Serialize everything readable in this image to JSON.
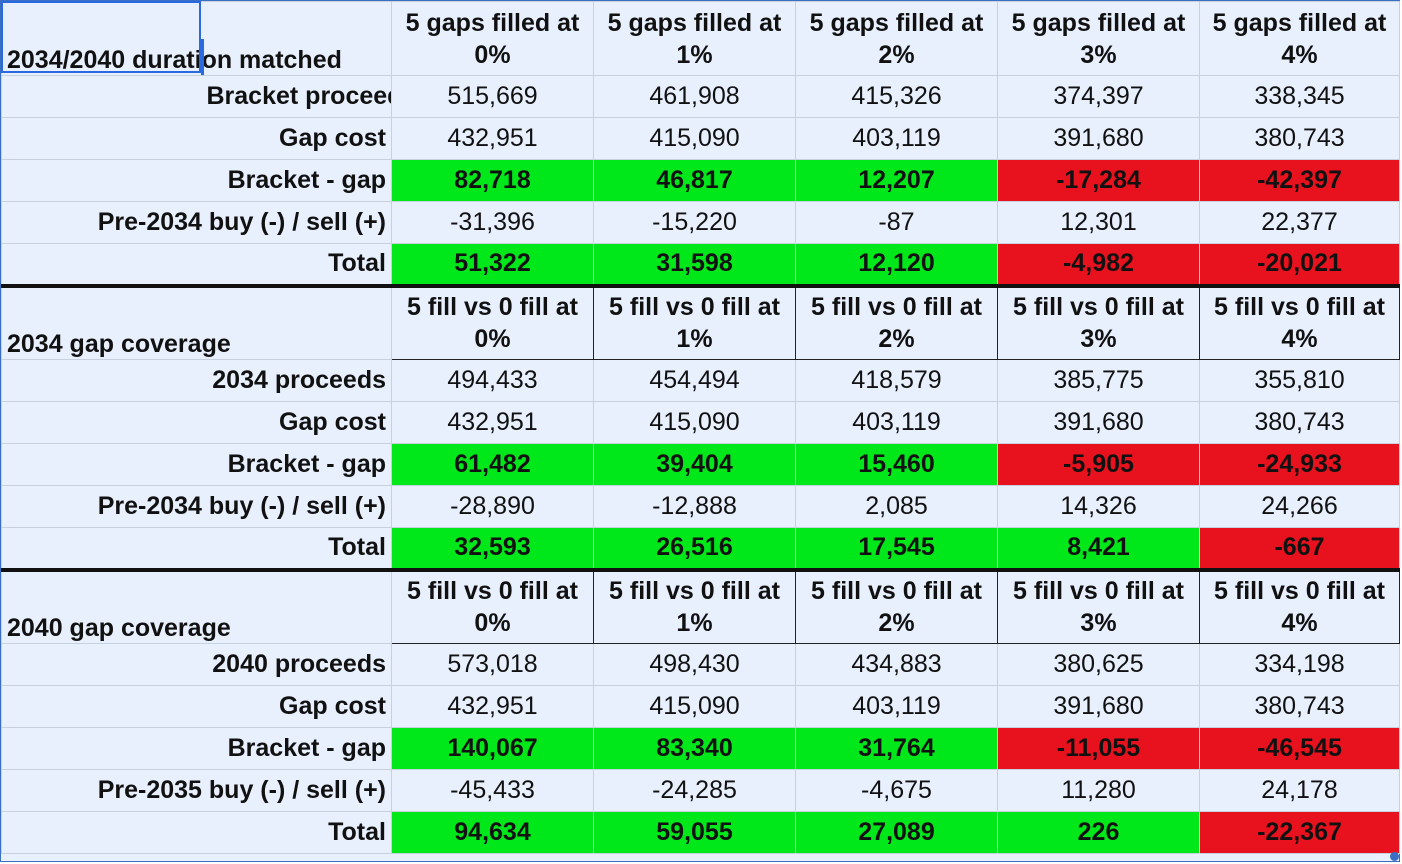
{
  "sections": [
    {
      "title": "2034/2040 duration matched",
      "headers": [
        [
          "5 gaps filled at",
          "0%"
        ],
        [
          "5 gaps filled at",
          "1%"
        ],
        [
          "5 gaps filled at",
          "2%"
        ],
        [
          "5 gaps filled at",
          "3%"
        ],
        [
          "5 gaps filled at",
          "4%"
        ]
      ],
      "rows": [
        {
          "label": "Bracket proceeds",
          "values": [
            "515,669",
            "461,908",
            "415,326",
            "374,397",
            "338,345"
          ]
        },
        {
          "label": "Gap cost",
          "values": [
            "432,951",
            "415,090",
            "403,119",
            "391,680",
            "380,743"
          ]
        },
        {
          "label": "Bracket - gap",
          "values": [
            "82,718",
            "46,817",
            "12,207",
            "-17,284",
            "-42,397"
          ]
        },
        {
          "label": "Pre-2034 buy (-) / sell (+)",
          "values": [
            "-31,396",
            "-15,220",
            "-87",
            "12,301",
            "22,377"
          ]
        },
        {
          "label": "Total",
          "values": [
            "51,322",
            "31,598",
            "12,120",
            "-4,982",
            "-20,021"
          ]
        }
      ]
    },
    {
      "title": "2034 gap coverage",
      "headers": [
        [
          "5 fill vs 0 fill at",
          "0%"
        ],
        [
          "5 fill vs 0 fill at",
          "1%"
        ],
        [
          "5 fill vs 0 fill at",
          "2%"
        ],
        [
          "5 fill vs 0 fill at",
          "3%"
        ],
        [
          "5 fill vs 0 fill at",
          "4%"
        ]
      ],
      "rows": [
        {
          "label": "2034 proceeds",
          "values": [
            "494,433",
            "454,494",
            "418,579",
            "385,775",
            "355,810"
          ]
        },
        {
          "label": "Gap cost",
          "values": [
            "432,951",
            "415,090",
            "403,119",
            "391,680",
            "380,743"
          ]
        },
        {
          "label": "Bracket - gap",
          "values": [
            "61,482",
            "39,404",
            "15,460",
            "-5,905",
            "-24,933"
          ]
        },
        {
          "label": "Pre-2034 buy (-) / sell (+)",
          "values": [
            "-28,890",
            "-12,888",
            "2,085",
            "14,326",
            "24,266"
          ]
        },
        {
          "label": "Total",
          "values": [
            "32,593",
            "26,516",
            "17,545",
            "8,421",
            "-667"
          ]
        }
      ]
    },
    {
      "title": "2040 gap coverage",
      "headers": [
        [
          "5 fill vs 0 fill at",
          "0%"
        ],
        [
          "5 fill vs 0 fill at",
          "1%"
        ],
        [
          "5 fill vs 0 fill at",
          "2%"
        ],
        [
          "5 fill vs 0 fill at",
          "3%"
        ],
        [
          "5 fill vs 0 fill at",
          "4%"
        ]
      ],
      "rows": [
        {
          "label": "2040 proceeds",
          "values": [
            "573,018",
            "498,430",
            "434,883",
            "380,625",
            "334,198"
          ]
        },
        {
          "label": "Gap cost",
          "values": [
            "432,951",
            "415,090",
            "403,119",
            "391,680",
            "380,743"
          ]
        },
        {
          "label": "Bracket - gap",
          "values": [
            "140,067",
            "83,340",
            "31,764",
            "-11,055",
            "-46,545"
          ]
        },
        {
          "label": "Pre-2035 buy (-) / sell (+)",
          "values": [
            "-45,433",
            "-24,285",
            "-4,675",
            "11,280",
            "24,178"
          ]
        },
        {
          "label": "Total",
          "values": [
            "94,634",
            "59,055",
            "27,089",
            "226",
            "-22,367"
          ]
        }
      ]
    }
  ],
  "colors": {
    "positive_fill": "#00e81a",
    "negative_fill": "#e8121e",
    "cell_background": "#e8f0fe",
    "selection": "#2a6ae0"
  }
}
